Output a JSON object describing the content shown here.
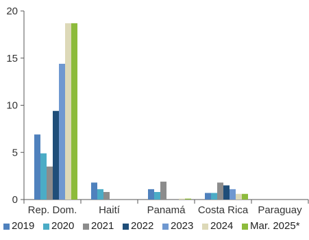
{
  "chart_data": {
    "type": "bar",
    "categories": [
      "Rep. Dom.",
      "Haití",
      "Panamá",
      "Costa Rica",
      "Paraguay"
    ],
    "series": [
      {
        "name": "2019",
        "color": "#4f81bd",
        "values": [
          6.9,
          1.8,
          1.1,
          0.7,
          0.0
        ]
      },
      {
        "name": "2020",
        "color": "#4bacc6",
        "values": [
          4.9,
          1.1,
          0.8,
          0.7,
          0.0
        ]
      },
      {
        "name": "2021",
        "color": "#8c8c8c",
        "values": [
          3.5,
          0.8,
          1.9,
          1.8,
          0.0
        ]
      },
      {
        "name": "2022",
        "color": "#1f4e79",
        "values": [
          9.4,
          0.0,
          0.0,
          1.5,
          0.0
        ]
      },
      {
        "name": "2023",
        "color": "#6f98d0",
        "values": [
          14.4,
          0.0,
          0.0,
          1.1,
          0.0
        ]
      },
      {
        "name": "2024",
        "color": "#ddd9b8",
        "values": [
          18.7,
          0.0,
          0.1,
          0.6,
          0.0
        ]
      },
      {
        "name": "Mar. 2025*",
        "color": "#8dbb3c",
        "values": [
          18.7,
          0.0,
          0.1,
          0.6,
          0.0
        ]
      }
    ],
    "ylim": [
      0,
      20
    ],
    "yticks": [
      0,
      5,
      10,
      15,
      20
    ],
    "ytick_labels": [
      "0",
      "5",
      "10",
      "15",
      "20"
    ],
    "grid": false,
    "legend_position": "bottom",
    "title": "",
    "xlabel": "",
    "ylabel": ""
  }
}
